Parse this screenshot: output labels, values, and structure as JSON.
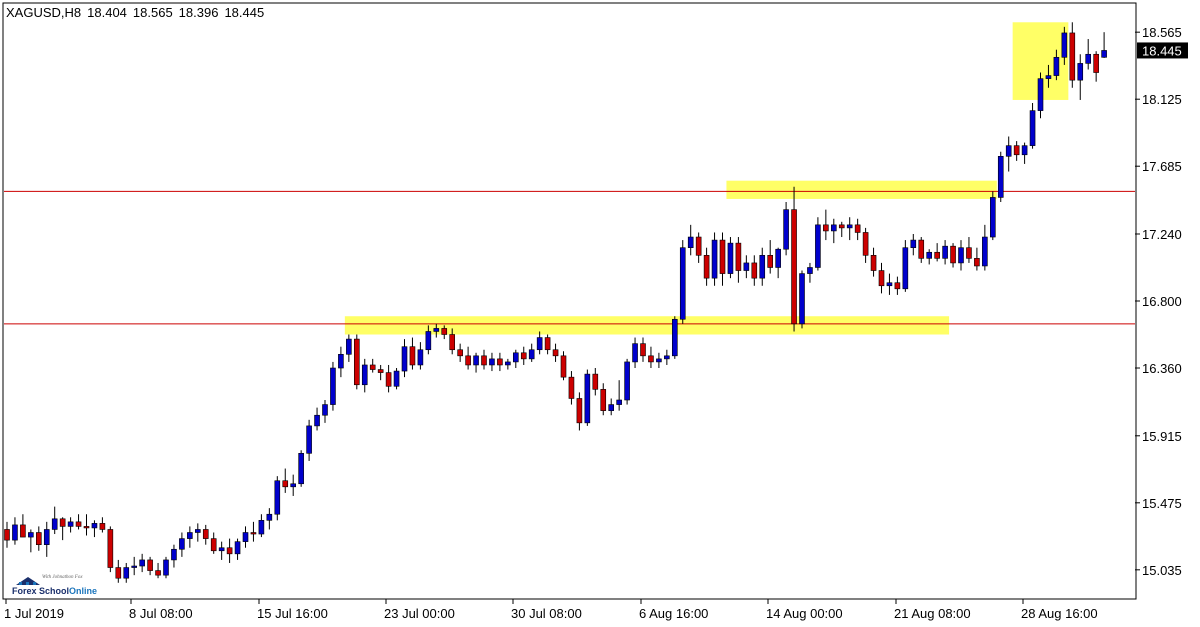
{
  "header": {
    "symbol": "XAGUSD,H8",
    "open": "18.404",
    "high": "18.565",
    "low": "18.396",
    "close": "18.445"
  },
  "logo": {
    "tagline": "With Johnathon Fox",
    "name_part1": "Forex School",
    "name_part2": "Online"
  },
  "colors": {
    "bull": "#0000cc",
    "bear": "#cc0000",
    "wick": "#000000",
    "highlight": "#ffff66",
    "level_line": "#cc0000",
    "price_tag_bg": "#000000",
    "price_tag_text": "#ffffff"
  },
  "chart_data": {
    "type": "candlestick",
    "timeframe": "H8",
    "ylim": [
      14.85,
      18.75
    ],
    "grid": false,
    "y_ticks": [
      "18.565",
      "18.125",
      "17.685",
      "17.240",
      "16.800",
      "16.360",
      "15.915",
      "15.475",
      "15.035"
    ],
    "x_ticks": [
      "1 Jul 2019",
      "8 Jul 08:00",
      "15 Jul 16:00",
      "23 Jul 00:00",
      "30 Jul 08:00",
      "6 Aug 16:00",
      "14 Aug 00:00",
      "21 Aug 08:00",
      "28 Aug 16:00"
    ],
    "current_price": "18.445",
    "horizontal_levels": [
      17.52,
      16.65
    ],
    "highlight_zones": [
      {
        "from_bar": 43,
        "to_bar": 118,
        "low": 16.58,
        "high": 16.7
      },
      {
        "from_bar": 91,
        "to_bar": 124,
        "low": 17.47,
        "high": 17.59
      },
      {
        "from_bar": 127,
        "to_bar": 133,
        "low": 18.12,
        "high": 18.63
      }
    ],
    "candles": [
      [
        15.3,
        15.35,
        15.18,
        15.23
      ],
      [
        15.23,
        15.38,
        15.2,
        15.33
      ],
      [
        15.33,
        15.4,
        15.25,
        15.25
      ],
      [
        15.25,
        15.3,
        15.15,
        15.28
      ],
      [
        15.28,
        15.32,
        15.16,
        15.2
      ],
      [
        15.2,
        15.35,
        15.12,
        15.3
      ],
      [
        15.3,
        15.45,
        15.27,
        15.37
      ],
      [
        15.37,
        15.38,
        15.23,
        15.32
      ],
      [
        15.32,
        15.38,
        15.28,
        15.35
      ],
      [
        15.35,
        15.4,
        15.3,
        15.32
      ],
      [
        15.32,
        15.4,
        15.26,
        15.31
      ],
      [
        15.31,
        15.36,
        15.25,
        15.34
      ],
      [
        15.34,
        15.38,
        15.28,
        15.3
      ],
      [
        15.3,
        15.32,
        15.02,
        15.05
      ],
      [
        15.05,
        15.1,
        14.95,
        14.98
      ],
      [
        14.98,
        15.08,
        14.95,
        15.05
      ],
      [
        15.05,
        15.12,
        15.0,
        15.06
      ],
      [
        15.06,
        15.14,
        15.02,
        15.1
      ],
      [
        15.1,
        15.12,
        15.0,
        15.03
      ],
      [
        15.03,
        15.08,
        14.98,
        15.0
      ],
      [
        15.0,
        15.12,
        14.98,
        15.1
      ],
      [
        15.1,
        15.2,
        15.05,
        15.17
      ],
      [
        15.17,
        15.28,
        15.12,
        15.24
      ],
      [
        15.24,
        15.32,
        15.18,
        15.28
      ],
      [
        15.28,
        15.34,
        15.22,
        15.3
      ],
      [
        15.3,
        15.33,
        15.2,
        15.24
      ],
      [
        15.24,
        15.28,
        15.14,
        15.16
      ],
      [
        15.16,
        15.22,
        15.1,
        15.18
      ],
      [
        15.18,
        15.24,
        15.08,
        15.14
      ],
      [
        15.14,
        15.24,
        15.1,
        15.22
      ],
      [
        15.22,
        15.32,
        15.18,
        15.28
      ],
      [
        15.28,
        15.35,
        15.22,
        15.27
      ],
      [
        15.27,
        15.4,
        15.25,
        15.36
      ],
      [
        15.36,
        15.44,
        15.3,
        15.4
      ],
      [
        15.4,
        15.65,
        15.36,
        15.62
      ],
      [
        15.62,
        15.7,
        15.54,
        15.58
      ],
      [
        15.58,
        15.66,
        15.52,
        15.6
      ],
      [
        15.6,
        15.82,
        15.58,
        15.8
      ],
      [
        15.8,
        16.02,
        15.75,
        15.98
      ],
      [
        15.98,
        16.1,
        15.95,
        16.05
      ],
      [
        16.05,
        16.15,
        16.0,
        16.12
      ],
      [
        16.12,
        16.4,
        16.08,
        16.36
      ],
      [
        16.36,
        16.5,
        16.3,
        16.45
      ],
      [
        16.45,
        16.58,
        16.4,
        16.55
      ],
      [
        16.55,
        16.58,
        16.22,
        16.25
      ],
      [
        16.25,
        16.42,
        16.2,
        16.38
      ],
      [
        16.38,
        16.42,
        16.33,
        16.35
      ],
      [
        16.35,
        16.38,
        16.28,
        16.33
      ],
      [
        16.33,
        16.38,
        16.2,
        16.24
      ],
      [
        16.24,
        16.36,
        16.22,
        16.34
      ],
      [
        16.34,
        16.55,
        16.3,
        16.5
      ],
      [
        16.5,
        16.56,
        16.35,
        16.38
      ],
      [
        16.38,
        16.53,
        16.35,
        16.48
      ],
      [
        16.48,
        16.64,
        16.45,
        16.6
      ],
      [
        16.6,
        16.65,
        16.56,
        16.62
      ],
      [
        16.62,
        16.64,
        16.55,
        16.58
      ],
      [
        16.58,
        16.62,
        16.45,
        16.48
      ],
      [
        16.48,
        16.52,
        16.4,
        16.44
      ],
      [
        16.44,
        16.5,
        16.35,
        16.38
      ],
      [
        16.38,
        16.46,
        16.33,
        16.44
      ],
      [
        16.44,
        16.48,
        16.35,
        16.38
      ],
      [
        16.38,
        16.46,
        16.34,
        16.42
      ],
      [
        16.42,
        16.46,
        16.34,
        16.38
      ],
      [
        16.38,
        16.42,
        16.35,
        16.4
      ],
      [
        16.4,
        16.48,
        16.36,
        16.46
      ],
      [
        16.46,
        16.5,
        16.38,
        16.42
      ],
      [
        16.42,
        16.52,
        16.4,
        16.48
      ],
      [
        16.48,
        16.6,
        16.45,
        16.56
      ],
      [
        16.56,
        16.58,
        16.45,
        16.48
      ],
      [
        16.48,
        16.52,
        16.4,
        16.44
      ],
      [
        16.44,
        16.47,
        16.28,
        16.3
      ],
      [
        16.3,
        16.34,
        16.12,
        16.16
      ],
      [
        16.16,
        16.2,
        15.95,
        16.0
      ],
      [
        16.0,
        16.35,
        15.98,
        16.32
      ],
      [
        16.32,
        16.36,
        16.18,
        16.22
      ],
      [
        16.22,
        16.26,
        16.05,
        16.08
      ],
      [
        16.08,
        16.16,
        16.05,
        16.12
      ],
      [
        16.12,
        16.28,
        16.08,
        16.15
      ],
      [
        16.15,
        16.42,
        16.12,
        16.4
      ],
      [
        16.4,
        16.56,
        16.36,
        16.52
      ],
      [
        16.52,
        16.56,
        16.4,
        16.44
      ],
      [
        16.44,
        16.5,
        16.36,
        16.4
      ],
      [
        16.4,
        16.46,
        16.36,
        16.42
      ],
      [
        16.42,
        16.48,
        16.38,
        16.44
      ],
      [
        16.44,
        16.7,
        16.42,
        16.68
      ],
      [
        16.68,
        17.2,
        16.65,
        17.15
      ],
      [
        17.15,
        17.3,
        17.1,
        17.22
      ],
      [
        17.22,
        17.25,
        17.05,
        17.1
      ],
      [
        17.1,
        17.15,
        16.9,
        16.95
      ],
      [
        16.95,
        17.25,
        16.9,
        17.2
      ],
      [
        17.2,
        17.25,
        16.9,
        16.98
      ],
      [
        16.98,
        17.22,
        16.95,
        17.18
      ],
      [
        17.18,
        17.22,
        16.92,
        17.0
      ],
      [
        17.0,
        17.1,
        16.95,
        17.05
      ],
      [
        17.05,
        17.1,
        16.9,
        16.95
      ],
      [
        16.95,
        17.15,
        16.9,
        17.1
      ],
      [
        17.1,
        17.2,
        16.98,
        17.02
      ],
      [
        17.02,
        17.15,
        16.95,
        17.14
      ],
      [
        17.14,
        17.45,
        17.1,
        17.4
      ],
      [
        17.4,
        17.55,
        16.6,
        16.65
      ],
      [
        16.65,
        17.0,
        16.62,
        16.98
      ],
      [
        16.98,
        17.05,
        16.92,
        17.02
      ],
      [
        17.02,
        17.35,
        17.0,
        17.3
      ],
      [
        17.3,
        17.4,
        17.2,
        17.26
      ],
      [
        17.26,
        17.34,
        17.18,
        17.3
      ],
      [
        17.3,
        17.32,
        17.22,
        17.28
      ],
      [
        17.28,
        17.35,
        17.2,
        17.3
      ],
      [
        17.3,
        17.34,
        17.2,
        17.25
      ],
      [
        17.25,
        17.28,
        17.05,
        17.1
      ],
      [
        17.1,
        17.15,
        16.96,
        17.0
      ],
      [
        17.0,
        17.05,
        16.85,
        16.9
      ],
      [
        16.9,
        16.98,
        16.84,
        16.92
      ],
      [
        16.92,
        16.96,
        16.84,
        16.88
      ],
      [
        16.88,
        17.2,
        16.86,
        17.15
      ],
      [
        17.15,
        17.24,
        17.1,
        17.2
      ],
      [
        17.2,
        17.22,
        17.05,
        17.08
      ],
      [
        17.08,
        17.14,
        17.04,
        17.12
      ],
      [
        17.12,
        17.18,
        17.06,
        17.08
      ],
      [
        17.08,
        17.2,
        17.04,
        17.16
      ],
      [
        17.16,
        17.18,
        17.02,
        17.05
      ],
      [
        17.05,
        17.2,
        17.0,
        17.15
      ],
      [
        17.15,
        17.22,
        17.05,
        17.08
      ],
      [
        17.08,
        17.15,
        17.0,
        17.03
      ],
      [
        17.03,
        17.3,
        17.0,
        17.22
      ],
      [
        17.22,
        17.52,
        17.2,
        17.48
      ],
      [
        17.48,
        17.78,
        17.45,
        17.75
      ],
      [
        17.75,
        17.88,
        17.65,
        17.82
      ],
      [
        17.82,
        17.85,
        17.72,
        17.76
      ]
    ],
    "candles_tail": [
      [
        17.76,
        17.84,
        17.7,
        17.82
      ],
      [
        17.82,
        18.1,
        17.8,
        18.05
      ],
      [
        18.05,
        18.3,
        18.0,
        18.26
      ],
      [
        18.26,
        18.35,
        18.2,
        18.28
      ],
      [
        18.28,
        18.45,
        18.25,
        18.4
      ],
      [
        18.4,
        18.6,
        18.35,
        18.56
      ],
      [
        18.56,
        18.63,
        18.2,
        18.25
      ],
      [
        18.25,
        18.42,
        18.12,
        18.36
      ],
      [
        18.36,
        18.52,
        18.32,
        18.42
      ],
      [
        18.42,
        18.44,
        18.24,
        18.3
      ],
      [
        18.4,
        18.565,
        18.396,
        18.445
      ]
    ]
  }
}
